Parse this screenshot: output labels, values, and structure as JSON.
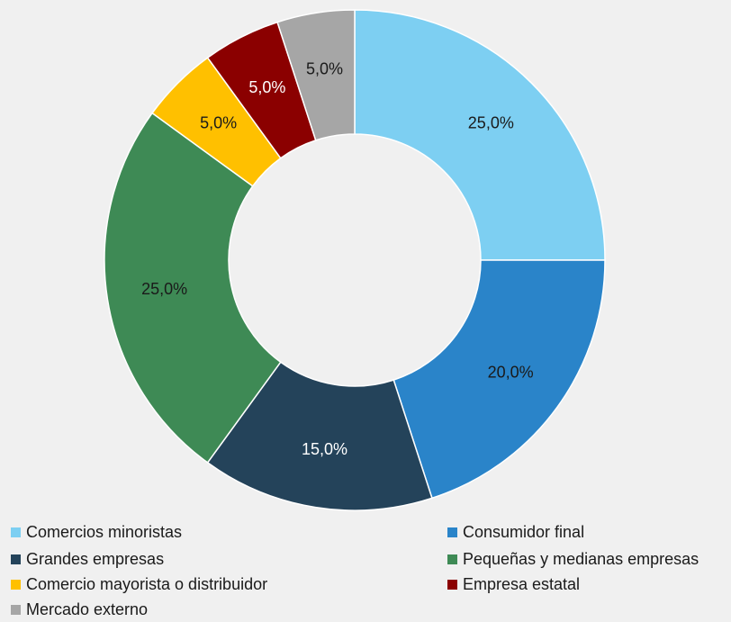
{
  "chart_data": {
    "type": "donut",
    "categories": [
      "Comercios minoristas",
      "Consumidor final",
      "Grandes empresas",
      "Pequeñas y medianas empresas",
      "Comercio mayorista o distribuidor",
      "Empresa estatal",
      "Mercado externo"
    ],
    "values": [
      25,
      20,
      15,
      25,
      5,
      5,
      5
    ],
    "value_labels": [
      "25,0%",
      "20,0%",
      "15,0%",
      "25,0%",
      "5,0%",
      "5,0%",
      "5,0%"
    ],
    "colors": [
      "#7dcff2",
      "#2a84c9",
      "#24435a",
      "#3e8a55",
      "#ffc000",
      "#8b0000",
      "#a6a6a6"
    ],
    "legend": "bottom"
  }
}
